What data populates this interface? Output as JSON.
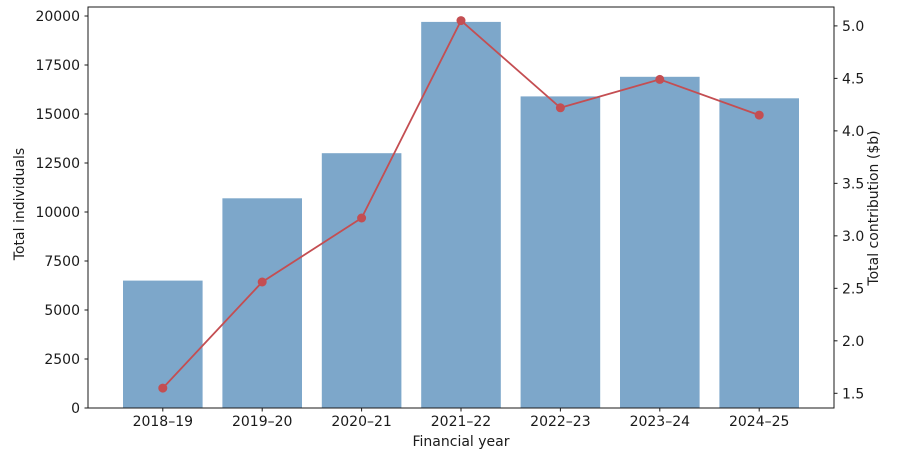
{
  "chart_data": {
    "type": "combo (bar + line, dual y-axis)",
    "title": "",
    "categories": [
      "2018–19",
      "2019–20",
      "2020–21",
      "2021–22",
      "2022–23",
      "2023–24",
      "2024–25"
    ],
    "series": [
      {
        "name": "Total individuals",
        "chart": "bar",
        "axis": "left",
        "color": "#7da7ca",
        "values": [
          6500,
          10700,
          13000,
          19700,
          15900,
          16900,
          15800
        ]
      },
      {
        "name": "Total contribution ($b)",
        "chart": "line",
        "axis": "right",
        "color": "#c44e52",
        "values": [
          1.55,
          2.56,
          3.17,
          5.05,
          4.22,
          4.49,
          4.15
        ]
      }
    ],
    "xlabel": "Financial year",
    "left_axis": {
      "label": "Total individuals",
      "tick_labels": [
        "0",
        "2500",
        "5000",
        "7500",
        "10000",
        "12500",
        "15000",
        "17500",
        "20000"
      ],
      "tick_values": [
        0,
        2500,
        5000,
        7500,
        10000,
        12500,
        15000,
        17500,
        20000
      ],
      "range": [
        0,
        20460
      ]
    },
    "right_axis": {
      "label": "Total contribution ($b)",
      "tick_labels": [
        "1.5",
        "2.0",
        "2.5",
        "3.0",
        "3.5",
        "4.0",
        "4.5",
        "5.0"
      ],
      "tick_values": [
        1.5,
        2.0,
        2.5,
        3.0,
        3.5,
        4.0,
        4.5,
        5.0
      ],
      "range": [
        1.36,
        5.18
      ]
    },
    "grid": false,
    "legend": "none",
    "axis_color": "#1a1a1a"
  }
}
